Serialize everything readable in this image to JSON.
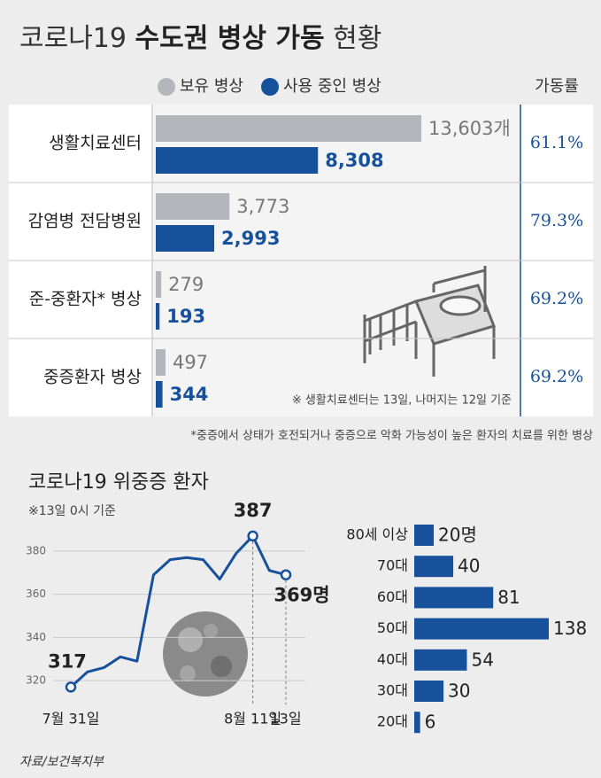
{
  "title": [
    "코로나19",
    "수도권 병상 가동",
    "현황"
  ],
  "source": "자료/보건복지부",
  "chart_data": [
    {
      "type": "bar",
      "orientation": "horizontal",
      "categories": [
        "생활치료센터",
        "감염병 전담병원",
        "준-중환자* 병상",
        "중증환자 병상"
      ],
      "series": [
        {
          "name": "보유 병상",
          "color": "#b5b6bb",
          "label_color": "#777777",
          "values": [
            13603,
            3773,
            279,
            497
          ],
          "value_labels": [
            "13,603개",
            "3,773",
            "279",
            "497"
          ]
        },
        {
          "name": "사용 중인 병상",
          "color": "#17509b",
          "label_color": "#17509b",
          "values": [
            8308,
            2993,
            193,
            344
          ],
          "value_labels": [
            "8,308",
            "2,993",
            "193",
            "344"
          ]
        }
      ],
      "rate_header": "가동률",
      "rates": [
        61.1,
        79.3,
        69.2,
        69.2
      ],
      "rate_labels": [
        "61.1%",
        "79.3%",
        "69.2%",
        "69.2%"
      ],
      "note": "※ 생활치료센터는 13일, 나머지는 12일 기준",
      "footnote": "*중증에서 상태가 호전되거나 중증으로 악화 가능성이 높은 환자의 치료를 위한 병상"
    },
    {
      "type": "line",
      "title": "코로나19 위중증 환자",
      "subtitle": "※13일 0시 기준",
      "categories": [
        "7월 31일",
        null,
        null,
        null,
        null,
        null,
        null,
        null,
        null,
        null,
        null,
        "8월 11일",
        null,
        "13일"
      ],
      "values": [
        317,
        324,
        326,
        331,
        329,
        369,
        376,
        377,
        376,
        367,
        379,
        387,
        371,
        369
      ],
      "value_labels": [
        "317",
        null,
        null,
        null,
        null,
        null,
        null,
        null,
        null,
        null,
        null,
        "387",
        null,
        "369명"
      ],
      "color": "#17509b",
      "ylim": [
        311,
        389
      ],
      "yticks": [
        320,
        340,
        360,
        380
      ],
      "grid": true
    },
    {
      "type": "bar",
      "orientation": "horizontal",
      "categories": [
        "80세 이상",
        "70대",
        "60대",
        "50대",
        "40대",
        "30대",
        "20대"
      ],
      "values": [
        20,
        40,
        81,
        138,
        54,
        30,
        6
      ],
      "value_labels": [
        "20명",
        "40",
        "81",
        "138",
        "54",
        "30",
        "6"
      ],
      "color": "#17509b"
    }
  ]
}
